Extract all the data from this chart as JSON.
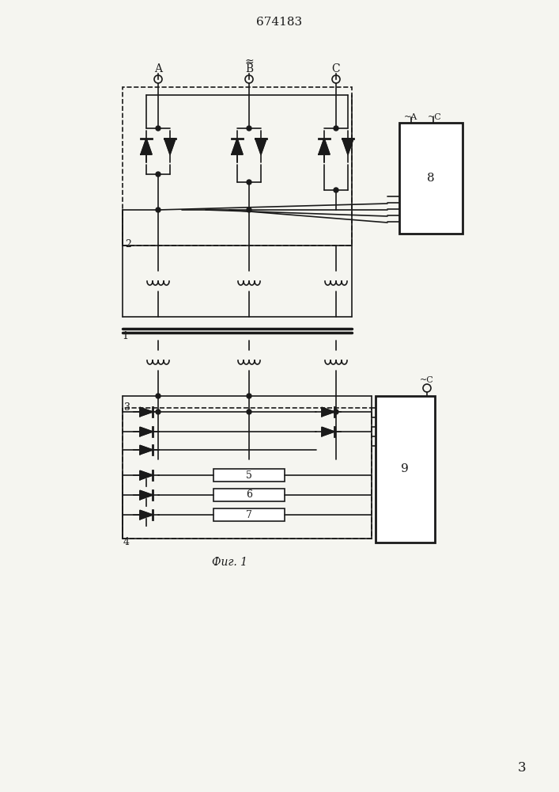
{
  "title": "674183",
  "fig_label": "Фиг. 1",
  "page_number": "3",
  "bg_color": "#f5f5f0",
  "line_color": "#1a1a1a",
  "lw": 1.2,
  "lw_thick": 2.0
}
